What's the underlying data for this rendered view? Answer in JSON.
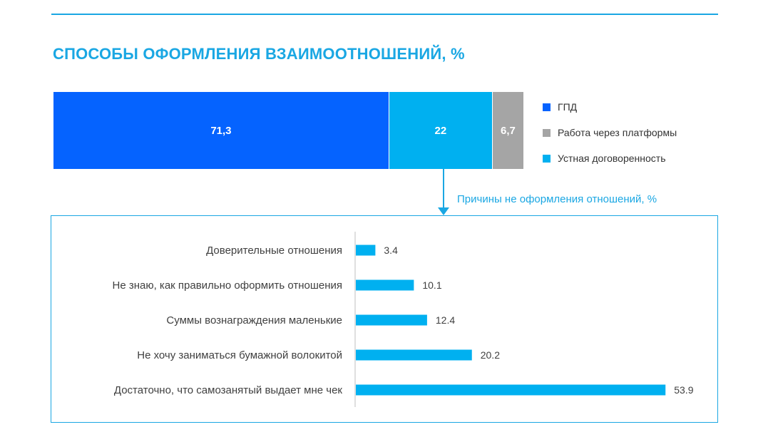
{
  "colors": {
    "accent": "#1aa7e3",
    "gpd": "#0563ff",
    "platforms": "#a5a5a5",
    "oral": "#00b0f0",
    "text": "#404040",
    "axis": "#bfbfbf"
  },
  "title": "СПОСОБЫ ОФОРМЛЕНИЯ ВЗАИМООТНОШЕНИЙ, %",
  "subtitle": "Причины не оформления отношений, %",
  "chart_data": [
    {
      "type": "bar",
      "orientation": "horizontal-stacked",
      "title": "СПОСОБЫ ОФОРМЛЕНИЯ ВЗАИМООТНОШЕНИЙ, %",
      "xlim": [
        0,
        100
      ],
      "series": [
        {
          "name": "ГПД",
          "value": 71.3,
          "label": "71,3",
          "color": "#0563ff"
        },
        {
          "name": "Устная договоренность",
          "value": 22,
          "label": "22",
          "color": "#00b0f0"
        },
        {
          "name": "Работа через платформы",
          "value": 6.7,
          "label": "6,7",
          "color": "#a5a5a5"
        }
      ],
      "legend": {
        "position": "right",
        "order": [
          "ГПД",
          "Работа через платформы",
          "Устная договоренность"
        ]
      }
    },
    {
      "type": "bar",
      "orientation": "horizontal",
      "title": "Причины не оформления отношений, %",
      "categories": [
        "Доверительные отношения",
        "Не знаю, как правильно оформить отношения",
        "Суммы вознаграждения маленькие",
        "Не хочу заниматься бумажной волокитой",
        "Достаточно, что самозанятый выдает мне чек"
      ],
      "values": [
        3.4,
        10.1,
        12.4,
        20.2,
        53.9
      ],
      "value_labels": [
        "3.4",
        "10.1",
        "12.4",
        "20.2",
        "53.9"
      ],
      "xlim": [
        0,
        56.6
      ],
      "color": "#00b0f0",
      "grid": false,
      "legend": "none"
    }
  ]
}
